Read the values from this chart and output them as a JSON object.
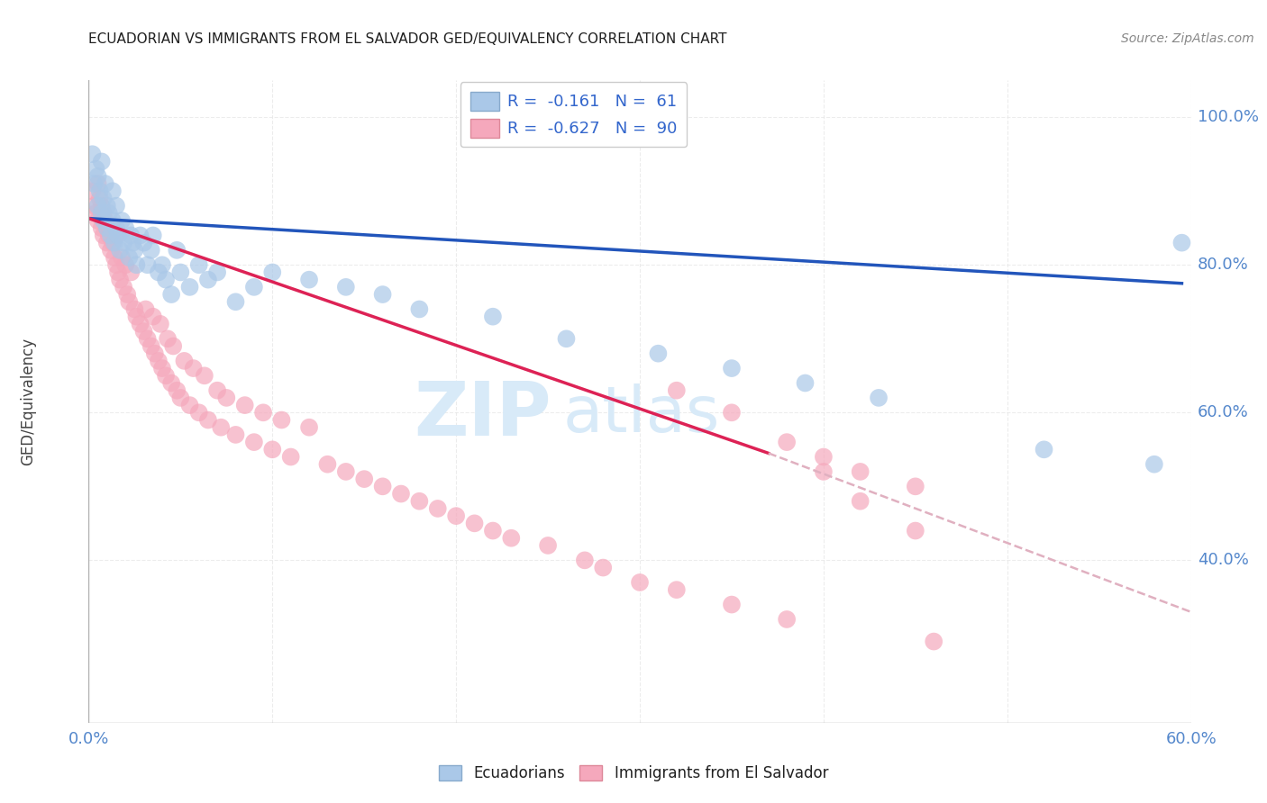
{
  "title": "ECUADORIAN VS IMMIGRANTS FROM EL SALVADOR GED/EQUIVALENCY CORRELATION CHART",
  "source": "Source: ZipAtlas.com",
  "ylabel": "GED/Equivalency",
  "right_yticks": [
    "100.0%",
    "80.0%",
    "60.0%",
    "40.0%"
  ],
  "right_ytick_vals": [
    1.0,
    0.8,
    0.6,
    0.4
  ],
  "legend_blue_r": "-0.161",
  "legend_blue_n": "61",
  "legend_pink_r": "-0.627",
  "legend_pink_n": "90",
  "blue_color": "#aac8e8",
  "pink_color": "#f5a8bc",
  "blue_line_color": "#2255bb",
  "pink_line_color": "#dd2255",
  "dashed_line_color": "#e0b0c0",
  "watermark_color": "#d8eaf8",
  "background_color": "#ffffff",
  "grid_color": "#e8e8e8",
  "blue_scatter_x": [
    0.002,
    0.003,
    0.004,
    0.005,
    0.005,
    0.006,
    0.007,
    0.007,
    0.008,
    0.008,
    0.009,
    0.01,
    0.01,
    0.011,
    0.012,
    0.013,
    0.013,
    0.014,
    0.015,
    0.015,
    0.016,
    0.017,
    0.018,
    0.019,
    0.02,
    0.022,
    0.023,
    0.024,
    0.025,
    0.026,
    0.028,
    0.03,
    0.032,
    0.034,
    0.035,
    0.038,
    0.04,
    0.042,
    0.045,
    0.048,
    0.05,
    0.055,
    0.06,
    0.065,
    0.07,
    0.08,
    0.09,
    0.1,
    0.12,
    0.14,
    0.16,
    0.18,
    0.22,
    0.26,
    0.31,
    0.35,
    0.39,
    0.43,
    0.52,
    0.58,
    0.595
  ],
  "blue_scatter_y": [
    0.95,
    0.91,
    0.93,
    0.88,
    0.92,
    0.9,
    0.87,
    0.94,
    0.86,
    0.89,
    0.91,
    0.88,
    0.85,
    0.87,
    0.84,
    0.86,
    0.9,
    0.83,
    0.85,
    0.88,
    0.84,
    0.82,
    0.86,
    0.83,
    0.85,
    0.81,
    0.84,
    0.83,
    0.82,
    0.8,
    0.84,
    0.83,
    0.8,
    0.82,
    0.84,
    0.79,
    0.8,
    0.78,
    0.76,
    0.82,
    0.79,
    0.77,
    0.8,
    0.78,
    0.79,
    0.75,
    0.77,
    0.79,
    0.78,
    0.77,
    0.76,
    0.74,
    0.73,
    0.7,
    0.68,
    0.66,
    0.64,
    0.62,
    0.55,
    0.53,
    0.83
  ],
  "pink_scatter_x": [
    0.002,
    0.003,
    0.004,
    0.005,
    0.005,
    0.006,
    0.007,
    0.007,
    0.008,
    0.008,
    0.009,
    0.01,
    0.01,
    0.011,
    0.012,
    0.013,
    0.014,
    0.015,
    0.015,
    0.016,
    0.017,
    0.018,
    0.019,
    0.02,
    0.021,
    0.022,
    0.023,
    0.025,
    0.026,
    0.028,
    0.03,
    0.031,
    0.032,
    0.034,
    0.035,
    0.036,
    0.038,
    0.039,
    0.04,
    0.042,
    0.043,
    0.045,
    0.046,
    0.048,
    0.05,
    0.052,
    0.055,
    0.057,
    0.06,
    0.063,
    0.065,
    0.07,
    0.072,
    0.075,
    0.08,
    0.085,
    0.09,
    0.095,
    0.1,
    0.105,
    0.11,
    0.12,
    0.13,
    0.14,
    0.15,
    0.16,
    0.17,
    0.18,
    0.19,
    0.2,
    0.21,
    0.22,
    0.23,
    0.25,
    0.27,
    0.28,
    0.3,
    0.32,
    0.35,
    0.38,
    0.4,
    0.42,
    0.45,
    0.46,
    0.32,
    0.35,
    0.38,
    0.4,
    0.42,
    0.45
  ],
  "pink_scatter_y": [
    0.9,
    0.88,
    0.87,
    0.86,
    0.91,
    0.89,
    0.85,
    0.88,
    0.84,
    0.87,
    0.86,
    0.85,
    0.83,
    0.84,
    0.82,
    0.83,
    0.81,
    0.8,
    0.84,
    0.79,
    0.78,
    0.81,
    0.77,
    0.8,
    0.76,
    0.75,
    0.79,
    0.74,
    0.73,
    0.72,
    0.71,
    0.74,
    0.7,
    0.69,
    0.73,
    0.68,
    0.67,
    0.72,
    0.66,
    0.65,
    0.7,
    0.64,
    0.69,
    0.63,
    0.62,
    0.67,
    0.61,
    0.66,
    0.6,
    0.65,
    0.59,
    0.63,
    0.58,
    0.62,
    0.57,
    0.61,
    0.56,
    0.6,
    0.55,
    0.59,
    0.54,
    0.58,
    0.53,
    0.52,
    0.51,
    0.5,
    0.49,
    0.48,
    0.47,
    0.46,
    0.45,
    0.44,
    0.43,
    0.42,
    0.4,
    0.39,
    0.37,
    0.36,
    0.34,
    0.32,
    0.54,
    0.52,
    0.5,
    0.29,
    0.63,
    0.6,
    0.56,
    0.52,
    0.48,
    0.44
  ],
  "xlim": [
    0.0,
    0.6
  ],
  "ylim": [
    0.18,
    1.05
  ],
  "blue_trendline_x": [
    0.0,
    0.595
  ],
  "blue_trendline_y": [
    0.863,
    0.775
  ],
  "pink_trendline_x": [
    0.0,
    0.37
  ],
  "pink_trendline_y": [
    0.863,
    0.545
  ],
  "dashed_trendline_x": [
    0.37,
    0.6
  ],
  "dashed_trendline_y": [
    0.545,
    0.33
  ]
}
